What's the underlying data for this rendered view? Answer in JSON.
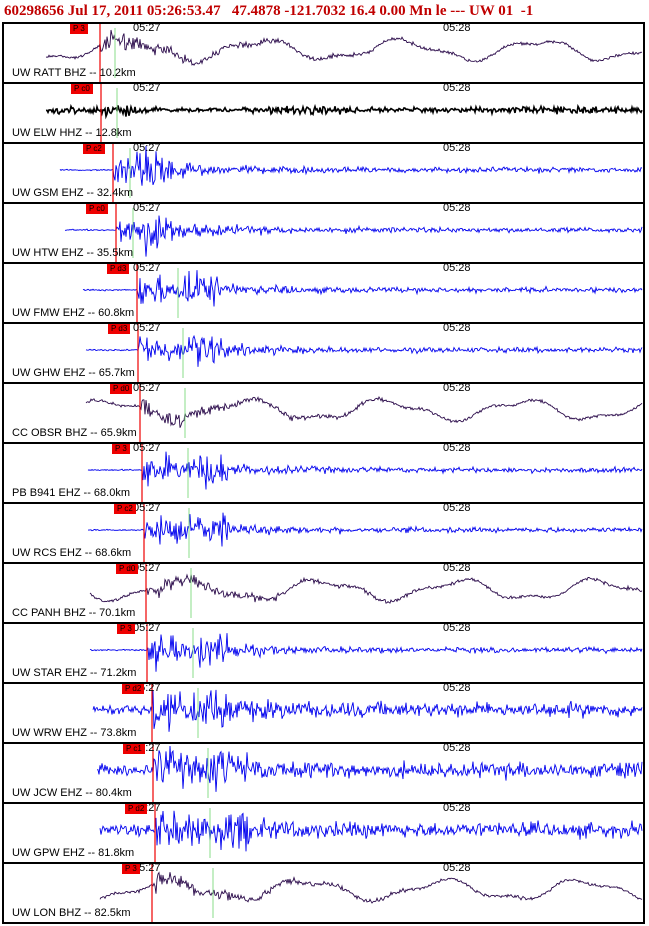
{
  "header": {
    "title": "60298656 Jul 17, 2011 05:26:53.47   47.4878 -121.7032 16.4 0.00 Mn le --- UW 01  -1"
  },
  "chart_data": {
    "type": "line",
    "title": "60298656 Jul 17, 2011 05:26:53.47   47.4878 -121.7032 16.4 0.00 Mn le --- UW 01  -1",
    "time_ticks": [
      "05:27",
      "05:28"
    ],
    "colors": {
      "pick": "#ee0000",
      "trace_short": "#0000ee",
      "trace_broadband": "#2a0a4a",
      "trace_elw": "#000000",
      "synthetic_line": "#88dd88"
    },
    "stations": [
      {
        "label": "UW RATT BHZ -- 10.2km",
        "pick": "P 3",
        "trace": "broadband",
        "distance_km": 10.2
      },
      {
        "label": "UW ELW HHZ -- 12.8km",
        "pick": "P c0",
        "trace": "elw",
        "distance_km": 12.8
      },
      {
        "label": "UW GSM EHZ -- 32.4km",
        "pick": "P c2",
        "trace": "short",
        "distance_km": 32.4
      },
      {
        "label": "UW HTW EHZ -- 35.5km",
        "pick": "P c0",
        "trace": "short",
        "distance_km": 35.5
      },
      {
        "label": "UW FMW EHZ -- 60.8km",
        "pick": "P d3",
        "trace": "short",
        "distance_km": 60.8
      },
      {
        "label": "UW GHW EHZ -- 65.7km",
        "pick": "P d3",
        "trace": "short",
        "distance_km": 65.7
      },
      {
        "label": "CC OBSR BHZ -- 65.9km",
        "pick": "P d0",
        "trace": "broadband",
        "distance_km": 65.9
      },
      {
        "label": "PB B941 EHZ -- 68.0km",
        "pick": "P 3",
        "trace": "short",
        "distance_km": 68.0
      },
      {
        "label": "UW RCS EHZ -- 68.6km",
        "pick": "P c2",
        "trace": "short",
        "distance_km": 68.6
      },
      {
        "label": "CC PANH BHZ -- 70.1km",
        "pick": "P d0",
        "trace": "broadband",
        "distance_km": 70.1
      },
      {
        "label": "UW STAR EHZ -- 71.2km",
        "pick": "P 3",
        "trace": "short",
        "distance_km": 71.2
      },
      {
        "label": "UW WRW EHZ -- 73.8km",
        "pick": "P d2",
        "trace": "short",
        "distance_km": 73.8
      },
      {
        "label": "UW JCW EHZ -- 80.4km",
        "pick": "P c1",
        "trace": "short",
        "distance_km": 80.4
      },
      {
        "label": "UW GPW EHZ -- 81.8km",
        "pick": "P d2",
        "trace": "short",
        "distance_km": 81.8
      },
      {
        "label": "UW LON BHZ -- 82.5km",
        "pick": "P 3",
        "trace": "broadband",
        "distance_km": 82.5
      }
    ]
  }
}
